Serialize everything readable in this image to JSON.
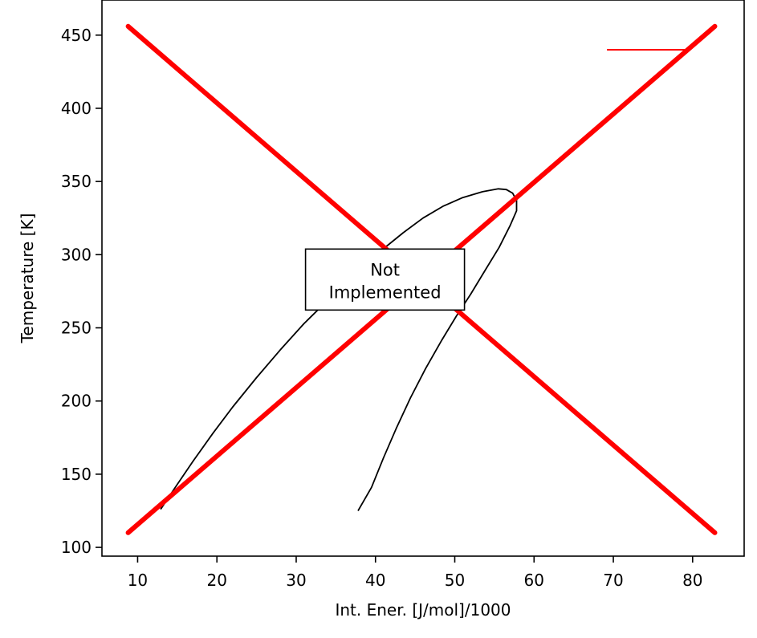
{
  "chart_data": {
    "type": "line",
    "title": "",
    "xlabel": "Int. Ener. [J/mol]/1000",
    "ylabel": "Temperature [K]",
    "xlim": [
      5.5,
      86.5
    ],
    "ylim": [
      94,
      474
    ],
    "xticks": [
      10,
      20,
      30,
      40,
      50,
      60,
      70,
      80
    ],
    "yticks": [
      100,
      150,
      200,
      250,
      300,
      350,
      400,
      450
    ],
    "grid": false,
    "legend": "none",
    "annotation": {
      "lines": [
        "Not",
        "Implemented"
      ],
      "x": 41.2,
      "y": 283
    },
    "series": [
      {
        "kind": "curve",
        "color": "#000000",
        "points": [
          [
            12.9,
            126
          ],
          [
            15.0,
            143
          ],
          [
            17.0,
            159
          ],
          [
            19.5,
            178
          ],
          [
            22.0,
            196
          ],
          [
            25.0,
            216
          ],
          [
            28.0,
            235
          ],
          [
            31.0,
            253
          ],
          [
            34.0,
            269
          ],
          [
            36.5,
            282
          ],
          [
            38.5,
            292
          ],
          [
            41.0,
            304
          ],
          [
            43.5,
            315
          ],
          [
            46.0,
            325
          ],
          [
            48.5,
            333
          ],
          [
            51.0,
            339
          ],
          [
            53.5,
            343
          ],
          [
            55.5,
            345
          ],
          [
            56.5,
            344.5
          ],
          [
            57.3,
            342
          ],
          [
            57.8,
            337
          ],
          [
            57.8,
            330
          ],
          [
            57.0,
            320
          ],
          [
            55.6,
            305
          ],
          [
            53.8,
            289
          ],
          [
            52.0,
            273
          ],
          [
            50.2,
            258
          ],
          [
            48.3,
            241
          ],
          [
            46.3,
            222
          ],
          [
            44.4,
            202
          ],
          [
            42.6,
            181
          ],
          [
            41.0,
            161
          ],
          [
            39.5,
            141
          ],
          [
            37.8,
            125
          ]
        ]
      },
      {
        "kind": "segment",
        "color": "#ff0000",
        "points": [
          [
            69.2,
            440
          ],
          [
            79.5,
            440
          ]
        ]
      },
      {
        "kind": "cross-line",
        "color": "#ff0000",
        "points": [
          [
            8.8,
            110
          ],
          [
            82.8,
            456
          ]
        ]
      },
      {
        "kind": "cross-line",
        "color": "#ff0000",
        "points": [
          [
            8.8,
            456
          ],
          [
            82.8,
            110
          ]
        ]
      }
    ]
  }
}
